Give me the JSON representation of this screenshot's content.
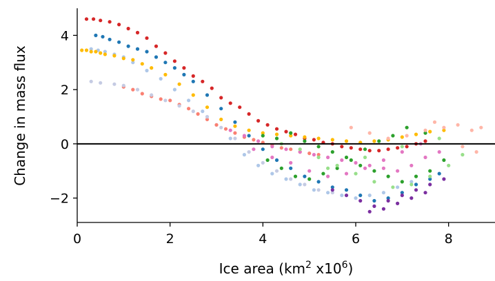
{
  "chart_data": {
    "type": "scatter",
    "title": "",
    "xlabel": {
      "prefix": "Ice area (km",
      "sup1": "2",
      "middle": " x10",
      "sup2": "6",
      "suffix": ")"
    },
    "ylabel": "Change in mass flux",
    "xlim": [
      0,
      9
    ],
    "ylim": [
      -2.9,
      5.0
    ],
    "xticks": [
      0,
      2,
      4,
      6,
      8
    ],
    "xtick_labels": [
      "0",
      "2",
      "4",
      "6",
      "8"
    ],
    "yticks": [
      -2,
      0,
      2,
      4
    ],
    "ytick_labels": [
      "−2",
      "0",
      "2",
      "4"
    ],
    "zero_line": true,
    "grid": false,
    "legend": "none",
    "series": [
      {
        "color": "#d62728",
        "x": [
          0.2,
          0.35,
          0.5,
          0.7,
          0.9,
          1.1,
          1.3,
          1.5,
          1.7,
          1.9,
          2.1,
          2.3,
          2.5,
          2.7,
          2.9,
          3.1,
          3.3,
          3.5,
          3.7,
          3.9,
          4.1,
          4.3,
          4.5,
          4.7,
          4.9,
          5.1,
          5.3,
          5.5,
          5.7,
          5.9,
          6.1,
          6.3,
          6.5,
          6.7,
          6.9,
          7.1,
          7.3,
          7.5
        ],
        "y": [
          4.6,
          4.6,
          4.55,
          4.5,
          4.4,
          4.25,
          4.1,
          3.9,
          3.6,
          3.35,
          3.05,
          2.8,
          2.5,
          2.3,
          2.05,
          1.7,
          1.5,
          1.35,
          1.1,
          0.85,
          0.7,
          0.55,
          0.45,
          0.35,
          0.2,
          0.15,
          0.05,
          0.0,
          -0.1,
          -0.15,
          -0.2,
          -0.25,
          -0.25,
          -0.2,
          -0.15,
          -0.1,
          0.0,
          0.1
        ]
      },
      {
        "color": "#1f77b4",
        "x": [
          0.4,
          0.55,
          0.7,
          0.9,
          1.1,
          1.3,
          1.5,
          1.7,
          1.9,
          2.1,
          2.3,
          2.5,
          2.8,
          3.1,
          3.4,
          3.7,
          4.0,
          4.3,
          4.6,
          4.9,
          5.2,
          5.5,
          5.8,
          6.1,
          6.4,
          6.7,
          7.0,
          7.3,
          7.6,
          7.8
        ],
        "y": [
          4.0,
          3.95,
          3.85,
          3.75,
          3.6,
          3.5,
          3.4,
          3.2,
          3.0,
          2.8,
          2.55,
          2.3,
          1.8,
          1.3,
          0.8,
          0.3,
          -0.2,
          -0.6,
          -0.9,
          -1.2,
          -1.4,
          -1.6,
          -1.7,
          -1.9,
          -2.1,
          -2.0,
          -1.8,
          -1.5,
          -1.3,
          -1.1
        ]
      },
      {
        "color": "#aec7e8",
        "x": [
          0.3,
          0.45,
          0.6,
          0.8,
          1.0,
          1.2,
          1.5,
          1.8,
          2.1,
          2.4,
          2.7,
          3.0,
          3.3,
          3.6,
          3.9,
          4.2,
          4.5,
          4.8,
          5.1,
          5.4,
          5.7,
          6.0,
          6.3,
          6.6,
          6.9,
          7.2
        ],
        "y": [
          3.5,
          3.45,
          3.4,
          3.3,
          3.2,
          3.0,
          2.7,
          2.4,
          2.0,
          1.6,
          1.2,
          0.7,
          0.2,
          -0.4,
          -0.8,
          -1.1,
          -1.3,
          -1.5,
          -1.7,
          -1.8,
          -1.9,
          -2.0,
          -1.9,
          -1.8,
          -1.6,
          -1.4
        ]
      },
      {
        "color": "#ffbb00",
        "x": [
          0.1,
          0.2,
          0.3,
          0.4,
          0.5,
          0.6,
          0.8,
          1.0,
          1.2,
          1.4,
          1.6,
          1.9,
          2.2,
          2.5,
          2.8,
          3.1,
          3.4,
          3.7,
          4.0,
          4.3,
          4.6,
          4.9,
          5.2,
          5.5,
          5.8,
          6.1,
          6.4,
          6.7,
          7.0,
          7.3,
          7.6,
          7.9
        ],
        "y": [
          3.45,
          3.45,
          3.4,
          3.4,
          3.35,
          3.3,
          3.25,
          3.15,
          3.1,
          2.95,
          2.8,
          2.55,
          2.2,
          1.8,
          1.35,
          0.9,
          0.65,
          0.5,
          0.4,
          0.35,
          0.3,
          0.25,
          0.2,
          0.15,
          0.1,
          0.05,
          0.1,
          0.15,
          0.25,
          0.35,
          0.45,
          0.5
        ]
      },
      {
        "color": "#fa8072",
        "x": [
          1.0,
          1.2,
          1.4,
          1.6,
          1.8,
          2.0,
          2.2,
          2.4,
          2.6,
          2.8,
          3.0,
          3.2,
          3.4,
          3.6,
          3.8,
          4.0,
          4.2,
          4.4,
          4.6,
          4.8,
          5.0,
          5.2
        ],
        "y": [
          2.1,
          2.0,
          1.85,
          1.75,
          1.65,
          1.6,
          1.45,
          1.3,
          1.1,
          0.9,
          0.7,
          0.55,
          0.4,
          0.25,
          0.15,
          0.05,
          -0.05,
          -0.15,
          -0.2,
          -0.3,
          -0.35,
          -0.4
        ]
      },
      {
        "color": "#c5cbe3",
        "x": [
          0.3,
          0.5,
          0.8,
          1.0,
          1.3,
          1.6,
          1.9,
          2.2,
          2.5,
          2.8,
          3.1,
          3.4,
          3.7,
          4.0,
          4.3,
          4.6,
          4.9,
          5.2,
          5.5
        ],
        "y": [
          2.3,
          2.25,
          2.2,
          2.15,
          2.0,
          1.8,
          1.6,
          1.4,
          1.2,
          1.0,
          0.6,
          0.2,
          -0.3,
          -0.7,
          -1.0,
          -1.3,
          -1.5,
          -1.7,
          -1.8
        ]
      },
      {
        "color": "#2ca02c",
        "x": [
          4.0,
          4.3,
          4.6,
          4.9,
          5.2,
          5.5,
          5.8,
          6.1,
          6.4,
          6.7,
          7.0,
          7.3,
          7.6,
          7.9,
          7.5,
          7.1,
          6.8,
          6.5,
          6.2,
          5.9,
          5.6,
          5.3,
          5.0,
          4.7,
          4.4,
          4.1
        ],
        "y": [
          0.3,
          0.2,
          0.4,
          0.1,
          -0.1,
          -0.3,
          -0.5,
          -0.8,
          -1.0,
          -1.2,
          -1.4,
          -1.2,
          -1.0,
          -0.6,
          0.4,
          0.6,
          0.3,
          0.1,
          -0.2,
          -0.6,
          -0.9,
          -1.1,
          -1.3,
          -1.2,
          -0.9,
          -0.6
        ]
      },
      {
        "color": "#e377c2",
        "x": [
          3.3,
          3.6,
          3.9,
          4.2,
          4.5,
          4.8,
          5.1,
          5.4,
          5.7,
          6.0,
          6.3,
          6.6,
          6.9,
          7.2,
          7.5,
          7.8,
          7.4,
          7.0,
          6.6,
          6.2,
          5.8,
          5.4,
          5.0,
          4.6,
          4.2,
          3.8
        ],
        "y": [
          0.5,
          0.3,
          0.1,
          -0.1,
          -0.2,
          -0.3,
          -0.4,
          -0.5,
          -0.6,
          -0.7,
          -0.8,
          -0.9,
          -1.0,
          -0.8,
          -0.5,
          -0.3,
          0.0,
          -0.3,
          -0.6,
          -0.9,
          -1.1,
          -1.2,
          -1.0,
          -0.7,
          -0.5,
          -0.2
        ]
      },
      {
        "color": "#7b2fa0",
        "x": [
          5.5,
          5.8,
          6.1,
          6.4,
          6.7,
          7.0,
          7.3,
          7.6,
          7.9,
          6.9,
          7.2,
          6.6,
          6.3,
          7.5
        ],
        "y": [
          -1.7,
          -1.9,
          -2.1,
          -2.3,
          -2.1,
          -1.9,
          -1.7,
          -1.5,
          -1.3,
          -2.2,
          -2.0,
          -2.4,
          -2.5,
          -1.8
        ]
      },
      {
        "color": "#98df8a",
        "x": [
          4.4,
          4.8,
          5.2,
          5.6,
          6.0,
          6.4,
          6.8,
          7.2,
          7.6,
          8.0,
          8.3,
          7.8,
          7.0,
          6.2,
          5.4
        ],
        "y": [
          0.0,
          -0.2,
          -0.5,
          -0.8,
          -1.1,
          -1.4,
          -1.6,
          -1.5,
          -1.2,
          -0.8,
          -0.4,
          0.2,
          -0.1,
          -0.5,
          -0.9
        ]
      },
      {
        "color": "#ffb6a8",
        "x": [
          5.9,
          6.3,
          6.7,
          7.1,
          7.5,
          7.9,
          8.2,
          8.5,
          8.7,
          8.6,
          8.3,
          7.7
        ],
        "y": [
          0.6,
          0.4,
          0.2,
          0.3,
          0.5,
          0.6,
          0.7,
          0.5,
          0.6,
          -0.3,
          -0.1,
          0.8
        ]
      }
    ]
  }
}
